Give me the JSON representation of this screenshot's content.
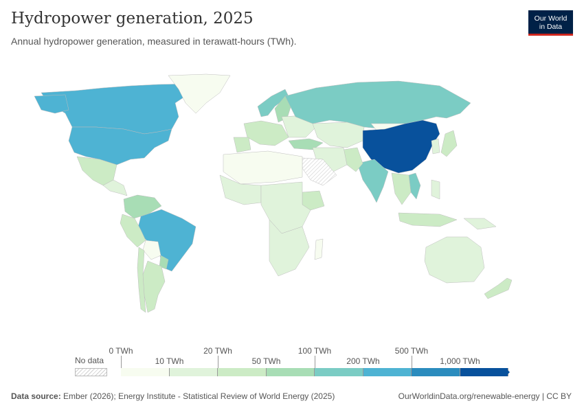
{
  "header": {
    "title": "Hydropower generation, 2025",
    "subtitle": "Annual hydropower generation, measured in terawatt-hours (TWh).",
    "logo_line1": "Our World",
    "logo_line2": "in Data"
  },
  "legend": {
    "no_data_label": "No data",
    "colors": [
      "#f7fcf0",
      "#e0f3db",
      "#ccebc5",
      "#a8ddb5",
      "#7bccc4",
      "#4eb3d3",
      "#2b8cbe",
      "#08519c"
    ],
    "upper_ticks": [
      "0 TWh",
      "20 TWh",
      "100 TWh",
      "500 TWh"
    ],
    "lower_ticks": [
      "10 TWh",
      "50 TWh",
      "200 TWh",
      "1,000 TWh"
    ]
  },
  "footer": {
    "source_label": "Data source:",
    "source_text": "Ember (2026); Energy Institute - Statistical Review of World Energy (2025)",
    "link": "OurWorldinData.org/renewable-energy | CC BY"
  },
  "map": {
    "regions": [
      {
        "name": "canada",
        "bin": 5
      },
      {
        "name": "united-states",
        "bin": 5
      },
      {
        "name": "alaska",
        "bin": 5
      },
      {
        "name": "greenland",
        "bin": 0
      },
      {
        "name": "mexico",
        "bin": 2
      },
      {
        "name": "central-america",
        "bin": 1
      },
      {
        "name": "venezuela-colombia",
        "bin": 3
      },
      {
        "name": "brazil",
        "bin": 5
      },
      {
        "name": "peru",
        "bin": 2
      },
      {
        "name": "bolivia",
        "bin": 0
      },
      {
        "name": "paraguay",
        "bin": 3
      },
      {
        "name": "argentina",
        "bin": 2
      },
      {
        "name": "chile",
        "bin": 2
      },
      {
        "name": "norway",
        "bin": 4
      },
      {
        "name": "sweden",
        "bin": 3
      },
      {
        "name": "western-europe",
        "bin": 2
      },
      {
        "name": "iberia",
        "bin": 2
      },
      {
        "name": "eastern-europe",
        "bin": 1
      },
      {
        "name": "turkey",
        "bin": 3
      },
      {
        "name": "russia",
        "bin": 4
      },
      {
        "name": "kazakhstan-central-asia",
        "bin": 1
      },
      {
        "name": "mongolia",
        "bin": 0
      },
      {
        "name": "china",
        "bin": 7
      },
      {
        "name": "japan",
        "bin": 2
      },
      {
        "name": "korea",
        "bin": 1
      },
      {
        "name": "india",
        "bin": 4
      },
      {
        "name": "pakistan",
        "bin": 2
      },
      {
        "name": "iran-middle-east",
        "bin": 1
      },
      {
        "name": "saudi-arabia",
        "bin": -1
      },
      {
        "name": "vietnam",
        "bin": 4
      },
      {
        "name": "southeast-asia",
        "bin": 2
      },
      {
        "name": "indonesia",
        "bin": 2
      },
      {
        "name": "new-guinea",
        "bin": 1
      },
      {
        "name": "philippines",
        "bin": 1
      },
      {
        "name": "north-africa",
        "bin": 0
      },
      {
        "name": "west-africa",
        "bin": 1
      },
      {
        "name": "ethiopia",
        "bin": 2
      },
      {
        "name": "dr-congo-central-africa",
        "bin": 1
      },
      {
        "name": "southern-africa",
        "bin": 1
      },
      {
        "name": "madagascar",
        "bin": 0
      },
      {
        "name": "australia",
        "bin": 1
      },
      {
        "name": "new-zealand",
        "bin": 2
      }
    ]
  }
}
